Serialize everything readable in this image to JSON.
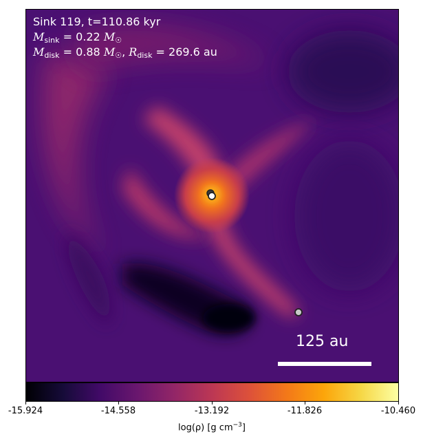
{
  "annotation": {
    "line1": "Sink 119, t=110.86 kyr",
    "msink_symbol": "M",
    "msink_sub": "sink",
    "msink_value": " = 0.22 ",
    "msun_symbol": "M",
    "msun_sub": "☉",
    "mdisk_symbol": "M",
    "mdisk_sub": "disk",
    "mdisk_value": " = 0.88 ",
    "mdisk_sun_symbol": "M",
    "mdisk_sun_sub": "☉",
    "separator": ", ",
    "rdisk_symbol": "R",
    "rdisk_sub": "disk",
    "rdisk_value": " = 269.6 au"
  },
  "scale_bar": {
    "label": "125 au"
  },
  "colorbar": {
    "ticks": [
      "-15.924",
      "-14.558",
      "-13.192",
      "-11.826",
      "-10.460"
    ],
    "label_prefix": "log(ρ) [g cm",
    "label_exp": "−3",
    "label_suffix": "]",
    "colormap": "inferno"
  },
  "colors": {
    "background_dark": "#3b0f70",
    "filament": "#c2406b",
    "core": "#f7921a",
    "void": "#0c0621"
  },
  "sinks": [
    {
      "name": "central-sink-1"
    },
    {
      "name": "central-sink-2"
    },
    {
      "name": "companion-sink"
    }
  ]
}
